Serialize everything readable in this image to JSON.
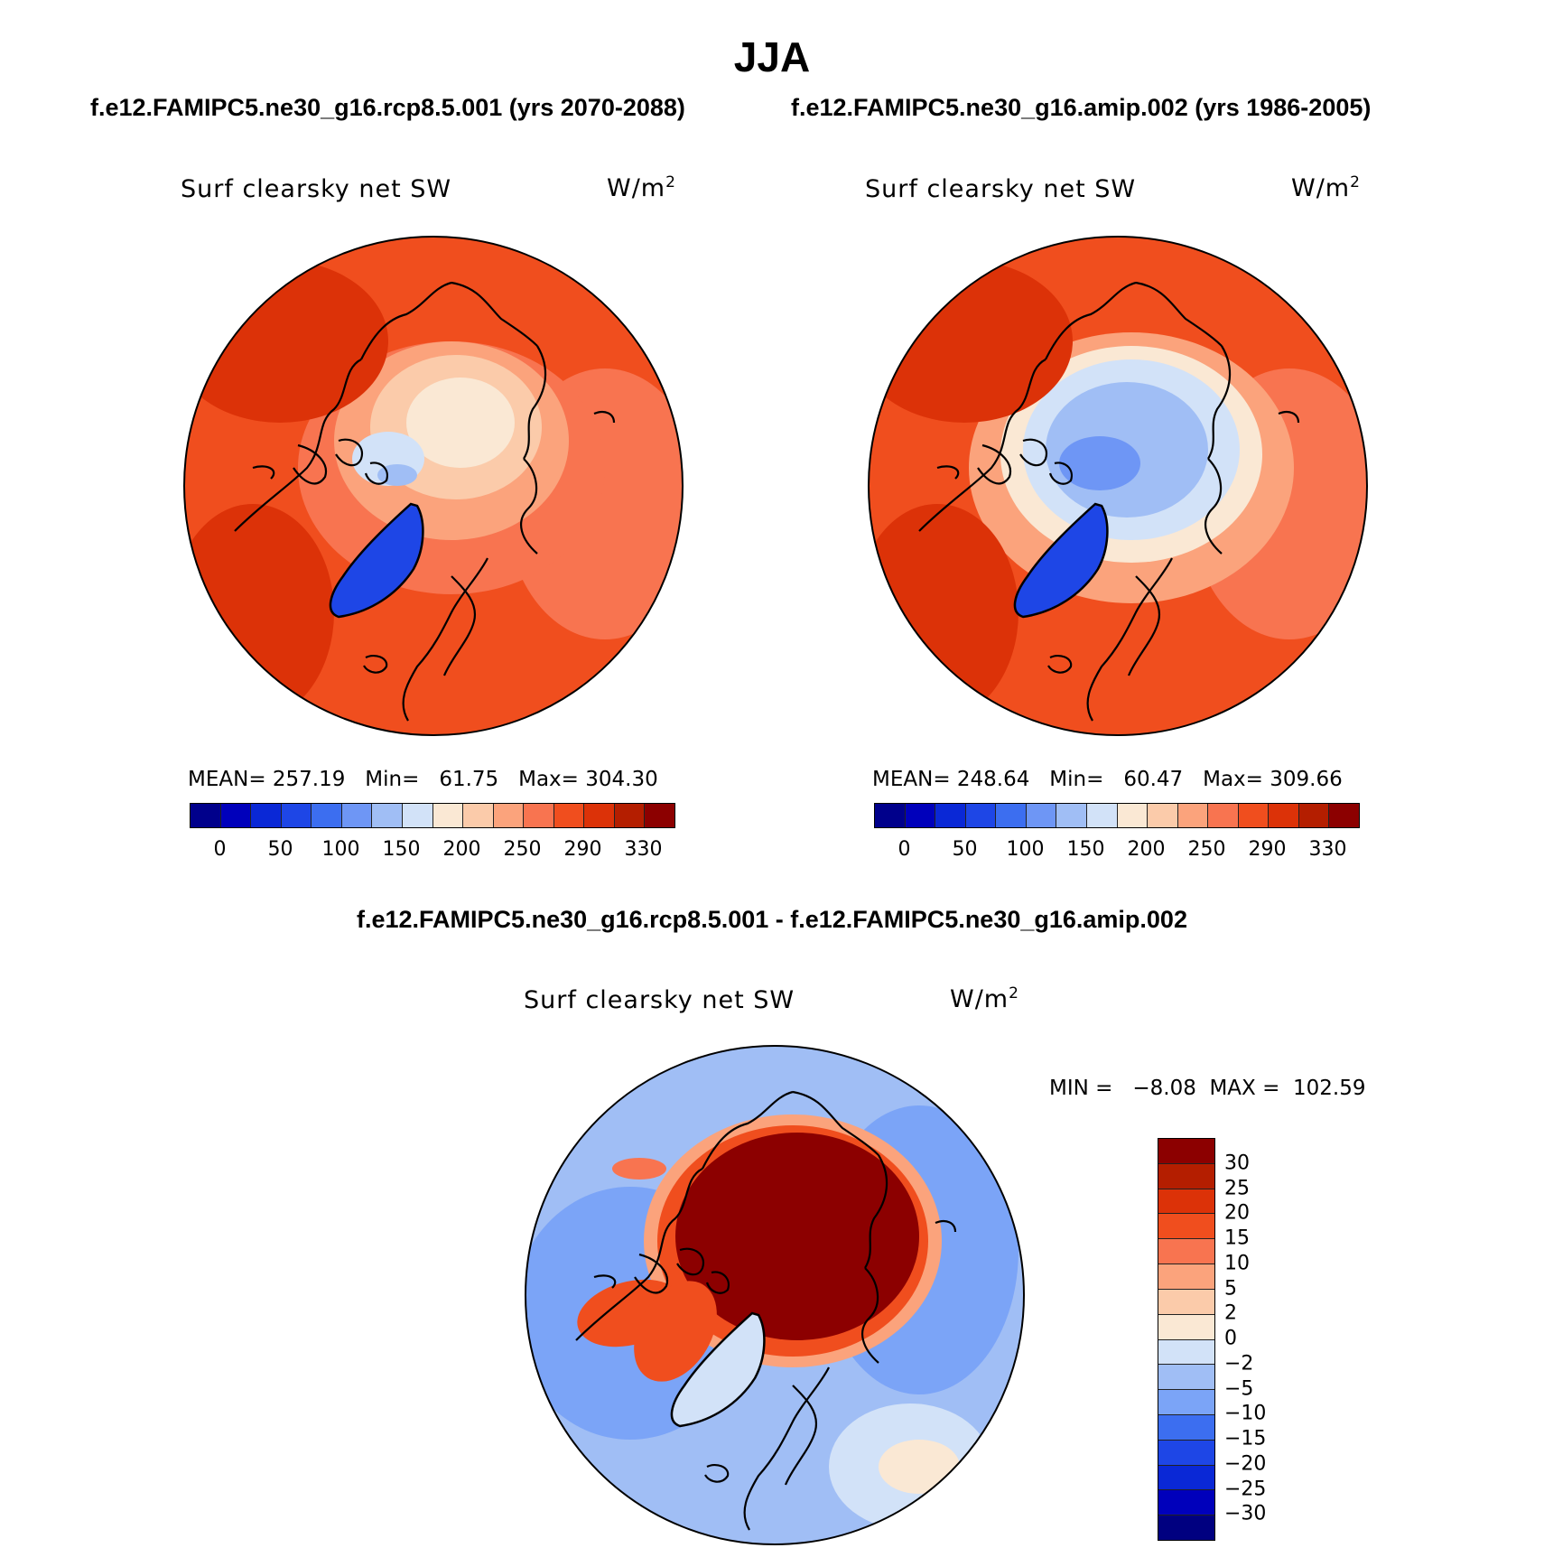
{
  "figure": {
    "season": "JJA",
    "subtitle_left": "f.e12.FAMIPC5.ne30_g16.rcp8.5.001 (yrs 2070-2088)",
    "subtitle_right": "f.e12.FAMIPC5.ne30_g16.amip.002 (yrs 1986-2005)",
    "diff_title": "f.e12.FAMIPC5.ne30_g16.rcp8.5.001 - f.e12.FAMIPC5.ne30_g16.amip.002"
  },
  "chart_data": [
    {
      "type": "heatmap",
      "projection": "north polar stereographic",
      "title": "Surf clearsky net SW",
      "units": "W/m",
      "units_exp": "2",
      "stats": {
        "mean": "257.19",
        "min": "61.75",
        "max": "304.30"
      },
      "stats_text": "MEAN= 257.19   Min=   61.75   Max= 304.30",
      "levels": [
        "0",
        "50",
        "100",
        "150",
        "200",
        "250",
        "290",
        "330"
      ],
      "colors": [
        "#00008b",
        "#0000bb",
        "#0a28d6",
        "#1e46e6",
        "#3c6ef0",
        "#6e96f5",
        "#a0bef5",
        "#d2e2f8",
        "#fae8d4",
        "#fbcbaa",
        "#fba37c",
        "#f87450",
        "#f04e1e",
        "#dc3208",
        "#b41e00",
        "#8c0000"
      ]
    },
    {
      "type": "heatmap",
      "projection": "north polar stereographic",
      "title": "Surf clearsky net SW",
      "units": "W/m",
      "units_exp": "2",
      "stats": {
        "mean": "248.64",
        "min": "60.47",
        "max": "309.66"
      },
      "stats_text": "MEAN= 248.64   Min=   60.47   Max= 309.66",
      "levels": [
        "0",
        "50",
        "100",
        "150",
        "200",
        "250",
        "290",
        "330"
      ],
      "colors": [
        "#00008b",
        "#0000bb",
        "#0a28d6",
        "#1e46e6",
        "#3c6ef0",
        "#6e96f5",
        "#a0bef5",
        "#d2e2f8",
        "#fae8d4",
        "#fbcbaa",
        "#fba37c",
        "#f87450",
        "#f04e1e",
        "#dc3208",
        "#b41e00",
        "#8c0000"
      ]
    },
    {
      "type": "heatmap",
      "projection": "north polar stereographic",
      "title": "Surf clearsky net SW",
      "units": "W/m",
      "units_exp": "2",
      "stats": {
        "min": "-8.08",
        "max": "102.59"
      },
      "stats_text": "MIN =   −8.08  MAX =  102.59",
      "levels": [
        "30",
        "25",
        "20",
        "15",
        "10",
        "5",
        "2",
        "0",
        "−2",
        "−5",
        "−10",
        "−15",
        "−20",
        "−25",
        "−30"
      ],
      "colors": [
        "#8c0000",
        "#b41e00",
        "#dc3208",
        "#f04e1e",
        "#f87450",
        "#fba37c",
        "#fbcbaa",
        "#fae8d4",
        "#d2e2f8",
        "#a0bef5",
        "#7ba4f7",
        "#3c6ef0",
        "#1e46e6",
        "#0a28d6",
        "#0000bb",
        "#000080"
      ]
    }
  ]
}
